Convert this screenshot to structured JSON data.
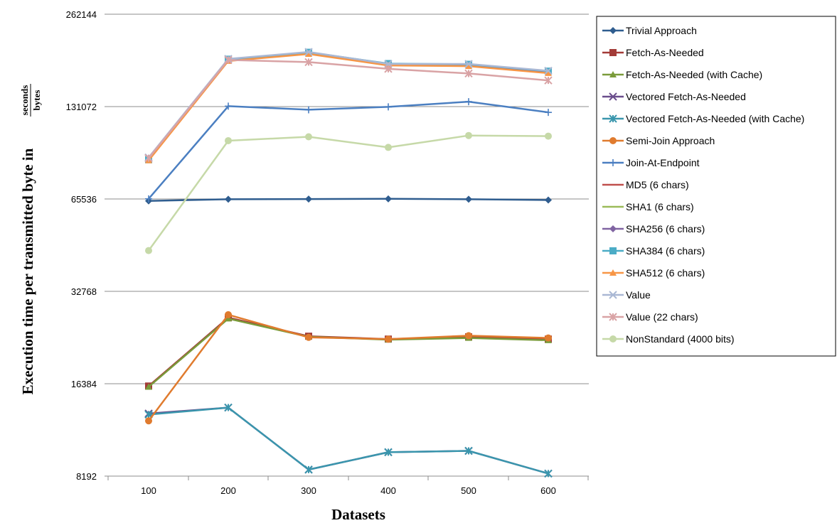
{
  "chart_data": {
    "type": "line",
    "y_scale": "log2",
    "ylabel": "Execution time per transmitted byte in",
    "ylabel_fraction": {
      "numerator": "seconds",
      "denominator": "bytes"
    },
    "xlabel": "Datasets",
    "x_categories": [
      "100",
      "200",
      "300",
      "400",
      "500",
      "600"
    ],
    "y_ticks": [
      "8192",
      "16384",
      "32768",
      "65536",
      "131072",
      "262144"
    ],
    "ylim": [
      8192,
      262144
    ],
    "grid": "horizontal",
    "legend_position": "right",
    "series": [
      {
        "name": "Trivial Approach",
        "color": "#2f5d8f",
        "marker": "diamond",
        "values": [
          64600,
          65400,
          65500,
          65600,
          65400,
          65000
        ]
      },
      {
        "name": "Fetch-As-Needed",
        "color": "#a33b38",
        "marker": "square",
        "values": [
          16100,
          26900,
          23400,
          22900,
          23300,
          22900
        ]
      },
      {
        "name": "Fetch-As-Needed (with Cache)",
        "color": "#7a9b3a",
        "marker": "triangle",
        "values": [
          16000,
          26700,
          23300,
          22800,
          23100,
          22700
        ]
      },
      {
        "name": "Vectored Fetch-As-Needed",
        "color": "#6a4d8c",
        "marker": "x",
        "values": [
          13100,
          13700,
          8600,
          9800,
          9900,
          8350
        ]
      },
      {
        "name": "Vectored Fetch-As-Needed (with Cache)",
        "color": "#3a96ad",
        "marker": "asterisk",
        "values": [
          13000,
          13700,
          8600,
          9800,
          9900,
          8350
        ]
      },
      {
        "name": "Semi-Join Approach",
        "color": "#e07b2e",
        "marker": "circle",
        "values": [
          12400,
          27500,
          23200,
          22900,
          23500,
          23100
        ]
      },
      {
        "name": "Join-At-Endpoint",
        "color": "#4b7fc1",
        "marker": "plus",
        "values": [
          65600,
          131500,
          128000,
          130800,
          136000,
          125500
        ]
      },
      {
        "name": "MD5 (6 chars)",
        "color": "#c0504d",
        "marker": "none",
        "values": [
          88000,
          186000,
          196000,
          180000,
          179000,
          170000
        ]
      },
      {
        "name": "SHA1 (6 chars)",
        "color": "#9bbb59",
        "marker": "none",
        "values": [
          88000,
          186500,
          196500,
          180500,
          179500,
          170500
        ]
      },
      {
        "name": "SHA256 (6 chars)",
        "color": "#8064a2",
        "marker": "diamond",
        "values": [
          88000,
          186000,
          196000,
          180000,
          179000,
          170000
        ]
      },
      {
        "name": "SHA384 (6 chars)",
        "color": "#4bacc6",
        "marker": "square",
        "values": [
          88000,
          187000,
          197000,
          181000,
          180000,
          171000
        ]
      },
      {
        "name": "SHA512 (6 chars)",
        "color": "#f79646",
        "marker": "triangle",
        "values": [
          87500,
          184500,
          194500,
          178500,
          177500,
          168500
        ]
      },
      {
        "name": "Value",
        "color": "#aab8d4",
        "marker": "x",
        "values": [
          89500,
          187500,
          197500,
          180500,
          180500,
          171500
        ]
      },
      {
        "name": "Value (22 chars)",
        "color": "#d9a3a5",
        "marker": "asterisk",
        "values": [
          89000,
          186000,
          183000,
          174000,
          168000,
          159500
        ]
      },
      {
        "name": "NonStandard (4000 bits)",
        "color": "#c6d9a8",
        "marker": "circle",
        "values": [
          44500,
          101500,
          104500,
          96500,
          105500,
          105000
        ]
      }
    ]
  }
}
